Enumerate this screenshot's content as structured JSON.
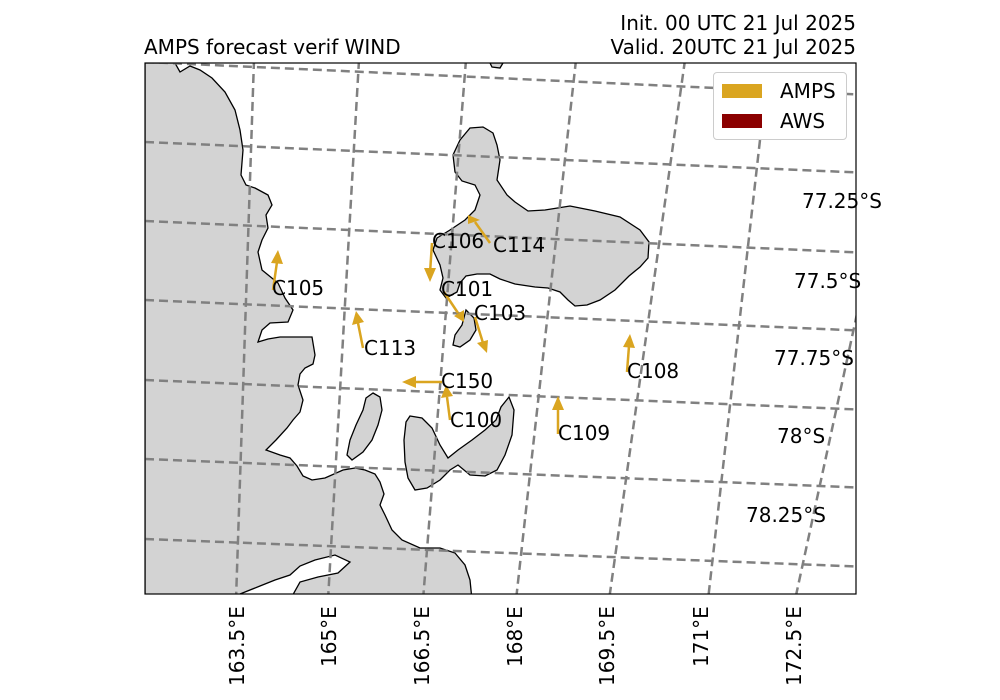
{
  "title": {
    "left": "AMPS forecast verif WIND",
    "init": "Init. 00 UTC 21 Jul 2025",
    "valid": "Valid. 20UTC 21 Jul 2025"
  },
  "legend": {
    "items": [
      {
        "label": "AMPS",
        "color": "#DAA520"
      },
      {
        "label": "AWS",
        "color": "#8B0000"
      }
    ]
  },
  "lat_labels": [
    "77.25°S",
    "77.5°S",
    "77.75°S",
    "78°S",
    "78.25°S"
  ],
  "lon_labels": [
    "163.5°E",
    "165°E",
    "166.5°E",
    "168°E",
    "169.5°E",
    "171°E",
    "172.5°E"
  ],
  "stations": [
    "C106",
    "C114",
    "C105",
    "C101",
    "C103",
    "C113",
    "C108",
    "C150",
    "C100",
    "C109"
  ],
  "colors": {
    "land": "#d3d3d3",
    "grid": "#808080",
    "amps_arrow": "#DAA520"
  }
}
